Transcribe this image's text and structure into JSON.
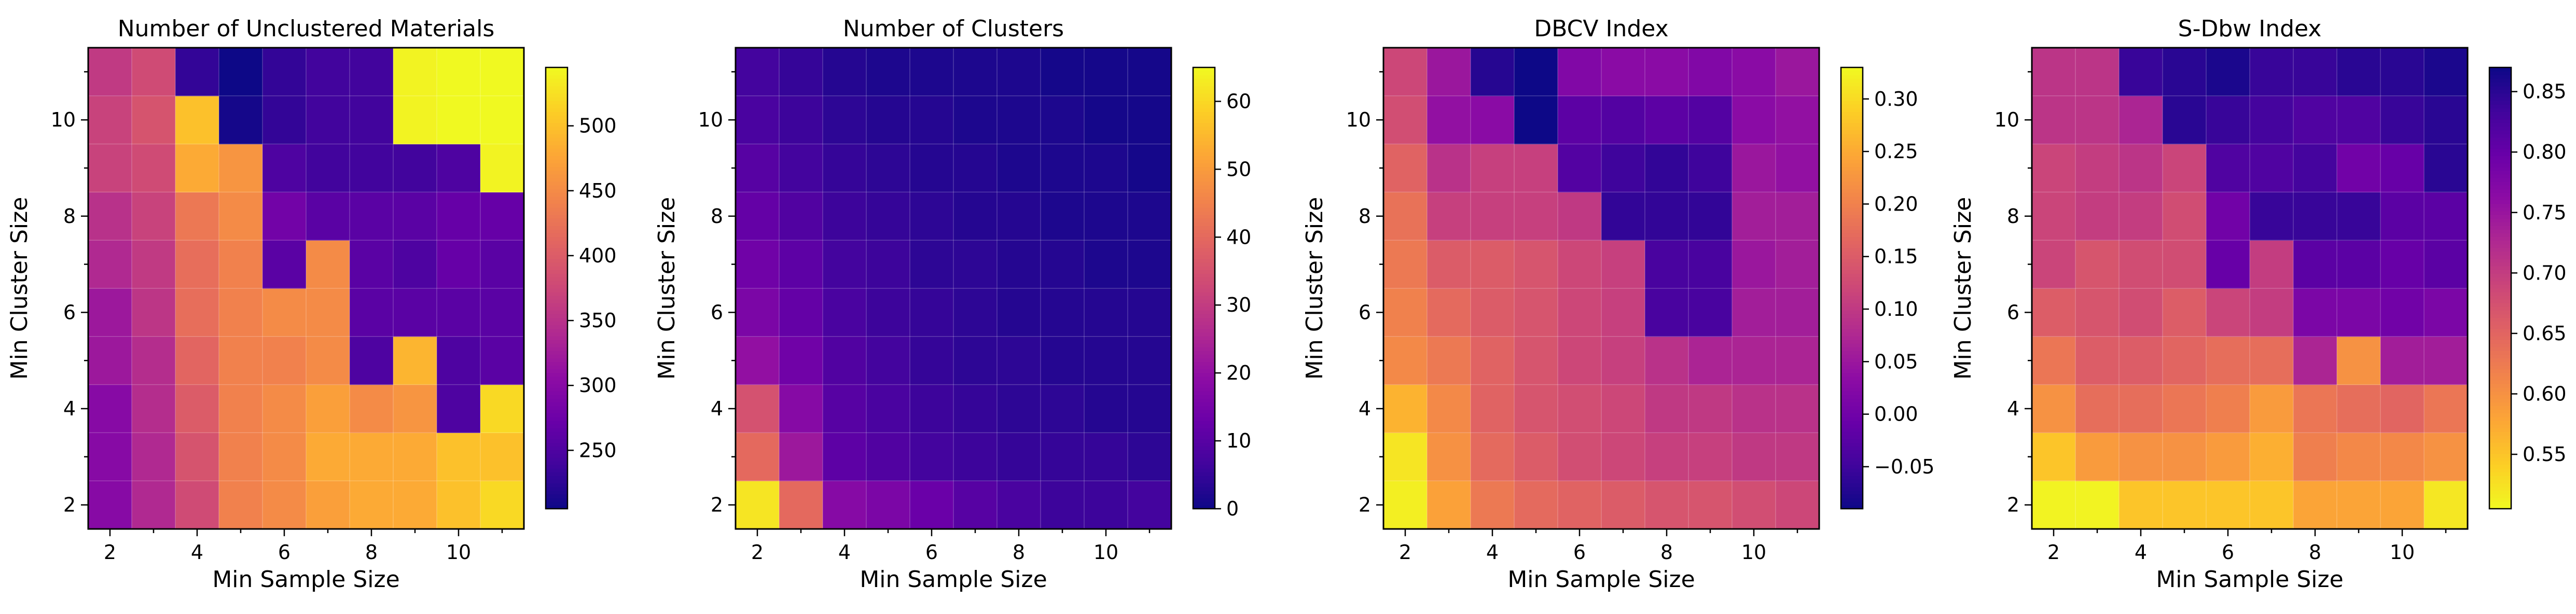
{
  "chart_data": [
    {
      "type": "heatmap",
      "title": "Number of Unclustered Materials",
      "xlabel": "Min Sample Size",
      "ylabel": "Min Cluster Size",
      "x": [
        2,
        3,
        4,
        5,
        6,
        7,
        8,
        9,
        10,
        11
      ],
      "y": [
        2,
        3,
        4,
        5,
        6,
        7,
        8,
        9,
        10,
        11
      ],
      "x_ticks": [
        "2",
        "4",
        "6",
        "8",
        "10"
      ],
      "y_ticks": [
        "2",
        "4",
        "6",
        "8",
        "10"
      ],
      "colormap": "plasma",
      "reverse_colormap": false,
      "vmin": 205,
      "vmax": 545,
      "colorbar_ticks": [
        "250",
        "300",
        "350",
        "400",
        "450",
        "500"
      ],
      "colorbar_values": [
        250,
        300,
        350,
        400,
        450,
        500
      ],
      "values": [
        [
          300,
          340,
          380,
          440,
          450,
          470,
          480,
          480,
          500,
          520
        ],
        [
          300,
          340,
          390,
          440,
          450,
          480,
          480,
          480,
          500,
          500
        ],
        [
          300,
          345,
          400,
          440,
          450,
          470,
          450,
          460,
          250,
          520
        ],
        [
          320,
          345,
          410,
          440,
          440,
          450,
          250,
          490,
          250,
          260
        ],
        [
          320,
          355,
          420,
          440,
          450,
          450,
          260,
          260,
          260,
          260
        ],
        [
          340,
          360,
          420,
          440,
          260,
          450,
          260,
          250,
          270,
          260
        ],
        [
          350,
          370,
          430,
          450,
          280,
          260,
          260,
          260,
          270,
          270
        ],
        [
          370,
          380,
          480,
          460,
          250,
          240,
          240,
          240,
          250,
          540
        ],
        [
          370,
          390,
          500,
          210,
          230,
          240,
          240,
          540,
          545,
          545
        ],
        [
          360,
          380,
          230,
          205,
          230,
          240,
          240,
          540,
          545,
          545
        ]
      ]
    },
    {
      "type": "heatmap",
      "title": "Number of Clusters",
      "xlabel": "Min Sample Size",
      "ylabel": "Min Cluster Size",
      "x": [
        2,
        3,
        4,
        5,
        6,
        7,
        8,
        9,
        10,
        11
      ],
      "y": [
        2,
        3,
        4,
        5,
        6,
        7,
        8,
        9,
        10,
        11
      ],
      "x_ticks": [
        "2",
        "4",
        "6",
        "8",
        "10"
      ],
      "y_ticks": [
        "2",
        "4",
        "6",
        "8",
        "10"
      ],
      "colormap": "plasma",
      "reverse_colormap": false,
      "vmin": 0,
      "vmax": 65,
      "colorbar_ticks": [
        "0",
        "10",
        "20",
        "30",
        "40",
        "50",
        "60"
      ],
      "colorbar_values": [
        0,
        10,
        20,
        30,
        40,
        50,
        60
      ],
      "values": [
        [
          62,
          40,
          18,
          16,
          13,
          10,
          8,
          6,
          6,
          7
        ],
        [
          40,
          22,
          11,
          9,
          7,
          6,
          5,
          5,
          5,
          4
        ],
        [
          35,
          18,
          10,
          8,
          6,
          5,
          4,
          4,
          3,
          3
        ],
        [
          20,
          14,
          9,
          7,
          5,
          4,
          4,
          3,
          3,
          3
        ],
        [
          16,
          12,
          8,
          6,
          5,
          4,
          3,
          3,
          3,
          3
        ],
        [
          14,
          11,
          7,
          6,
          4,
          4,
          3,
          3,
          2,
          2
        ],
        [
          12,
          9,
          6,
          5,
          4,
          3,
          3,
          2,
          2,
          2
        ],
        [
          10,
          7,
          5,
          4,
          3,
          3,
          2,
          2,
          2,
          1
        ],
        [
          8,
          6,
          4,
          3,
          3,
          2,
          2,
          2,
          1,
          1
        ],
        [
          7,
          5,
          3,
          2,
          2,
          2,
          2,
          1,
          1,
          1
        ]
      ]
    },
    {
      "type": "heatmap",
      "title": "DBCV Index",
      "xlabel": "Min Sample Size",
      "ylabel": "Min Cluster Size",
      "x": [
        2,
        3,
        4,
        5,
        6,
        7,
        8,
        9,
        10,
        11
      ],
      "y": [
        2,
        3,
        4,
        5,
        6,
        7,
        8,
        9,
        10,
        11
      ],
      "x_ticks": [
        "2",
        "4",
        "6",
        "8",
        "10"
      ],
      "y_ticks": [
        "2",
        "4",
        "6",
        "8",
        "10"
      ],
      "colormap": "plasma",
      "reverse_colormap": false,
      "vmin": -0.09,
      "vmax": 0.33,
      "colorbar_ticks": [
        "−0.05",
        "0.00",
        "0.05",
        "0.10",
        "0.15",
        "0.20",
        "0.25",
        "0.30"
      ],
      "colorbar_values": [
        -0.05,
        0.0,
        0.05,
        0.1,
        0.15,
        0.2,
        0.25,
        0.3
      ],
      "values": [
        [
          0.32,
          0.24,
          0.19,
          0.17,
          0.16,
          0.15,
          0.14,
          0.14,
          0.13,
          0.12
        ],
        [
          0.31,
          0.22,
          0.17,
          0.15,
          0.13,
          0.12,
          0.11,
          0.11,
          0.1,
          0.1
        ],
        [
          0.26,
          0.21,
          0.16,
          0.14,
          0.13,
          0.12,
          0.1,
          0.1,
          0.09,
          0.09
        ],
        [
          0.21,
          0.19,
          0.16,
          0.14,
          0.12,
          0.11,
          0.09,
          0.07,
          0.07,
          0.07
        ],
        [
          0.2,
          0.17,
          0.15,
          0.14,
          0.12,
          0.11,
          -0.04,
          -0.04,
          0.06,
          0.06
        ],
        [
          0.19,
          0.15,
          0.15,
          0.14,
          0.12,
          0.11,
          -0.04,
          -0.04,
          0.05,
          0.06
        ],
        [
          0.18,
          0.11,
          0.11,
          0.11,
          0.1,
          -0.06,
          -0.06,
          -0.06,
          0.06,
          0.06
        ],
        [
          0.16,
          0.09,
          0.11,
          0.11,
          -0.03,
          -0.05,
          -0.06,
          -0.05,
          0.05,
          0.04
        ],
        [
          0.13,
          0.04,
          0.03,
          -0.09,
          -0.02,
          -0.03,
          -0.02,
          -0.03,
          0.03,
          0.04
        ],
        [
          0.12,
          0.05,
          -0.07,
          -0.09,
          0.02,
          0.03,
          0.03,
          0.02,
          0.03,
          0.05
        ]
      ]
    },
    {
      "type": "heatmap",
      "title": "S-Dbw Index",
      "xlabel": "Min Sample Size",
      "ylabel": "Min Cluster Size",
      "x": [
        2,
        3,
        4,
        5,
        6,
        7,
        8,
        9,
        10,
        11
      ],
      "y": [
        2,
        3,
        4,
        5,
        6,
        7,
        8,
        9,
        10,
        11
      ],
      "x_ticks": [
        "2",
        "4",
        "6",
        "8",
        "10"
      ],
      "y_ticks": [
        "2",
        "4",
        "6",
        "8",
        "10"
      ],
      "colormap": "plasma",
      "reverse_colormap": true,
      "vmin": 0.505,
      "vmax": 0.87,
      "colorbar_ticks": [
        "0.55",
        "0.60",
        "0.65",
        "0.70",
        "0.75",
        "0.80",
        "0.85"
      ],
      "colorbar_values": [
        0.55,
        0.6,
        0.65,
        0.7,
        0.75,
        0.8,
        0.85
      ],
      "values": [
        [
          0.51,
          0.51,
          0.55,
          0.55,
          0.55,
          0.55,
          0.58,
          0.58,
          0.58,
          0.52
        ],
        [
          0.55,
          0.59,
          0.6,
          0.6,
          0.59,
          0.57,
          0.62,
          0.61,
          0.61,
          0.6
        ],
        [
          0.6,
          0.64,
          0.64,
          0.63,
          0.62,
          0.59,
          0.63,
          0.64,
          0.65,
          0.63
        ],
        [
          0.63,
          0.66,
          0.66,
          0.65,
          0.64,
          0.64,
          0.73,
          0.6,
          0.74,
          0.74
        ],
        [
          0.66,
          0.67,
          0.68,
          0.66,
          0.69,
          0.7,
          0.78,
          0.78,
          0.79,
          0.78
        ],
        [
          0.69,
          0.67,
          0.68,
          0.68,
          0.8,
          0.7,
          0.81,
          0.81,
          0.8,
          0.81
        ],
        [
          0.69,
          0.7,
          0.7,
          0.68,
          0.79,
          0.84,
          0.84,
          0.84,
          0.81,
          0.81
        ],
        [
          0.69,
          0.7,
          0.71,
          0.69,
          0.82,
          0.82,
          0.83,
          0.79,
          0.8,
          0.85
        ],
        [
          0.71,
          0.71,
          0.73,
          0.85,
          0.84,
          0.83,
          0.82,
          0.82,
          0.84,
          0.85
        ],
        [
          0.71,
          0.71,
          0.84,
          0.85,
          0.86,
          0.84,
          0.84,
          0.85,
          0.85,
          0.86
        ]
      ]
    }
  ]
}
